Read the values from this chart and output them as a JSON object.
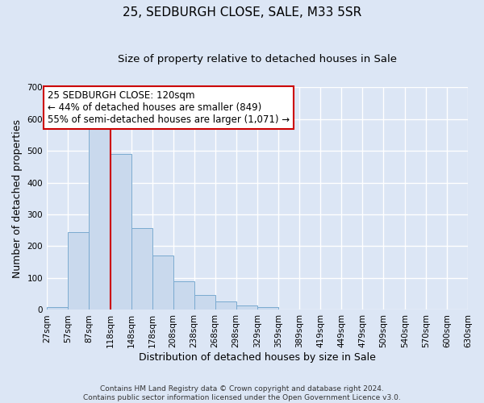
{
  "title": "25, SEDBURGH CLOSE, SALE, M33 5SR",
  "subtitle": "Size of property relative to detached houses in Sale",
  "xlabel": "Distribution of detached houses by size in Sale",
  "ylabel": "Number of detached properties",
  "footer_line1": "Contains HM Land Registry data © Crown copyright and database right 2024.",
  "footer_line2": "Contains public sector information licensed under the Open Government Licence v3.0.",
  "bin_edges": [
    27,
    57,
    87,
    118,
    148,
    178,
    208,
    238,
    268,
    298,
    329,
    359,
    389,
    419,
    449,
    479,
    509,
    540,
    570,
    600,
    630
  ],
  "bin_labels": [
    "27sqm",
    "57sqm",
    "87sqm",
    "118sqm",
    "148sqm",
    "178sqm",
    "208sqm",
    "238sqm",
    "268sqm",
    "298sqm",
    "329sqm",
    "359sqm",
    "389sqm",
    "419sqm",
    "449sqm",
    "479sqm",
    "509sqm",
    "540sqm",
    "570sqm",
    "600sqm",
    "630sqm"
  ],
  "bar_heights": [
    10,
    245,
    575,
    490,
    258,
    170,
    90,
    47,
    27,
    15,
    8,
    1,
    0,
    1,
    0,
    0,
    0,
    0,
    0,
    0
  ],
  "bar_facecolor": "#c9d9ed",
  "bar_edgecolor": "#7aaad0",
  "background_color": "#dce6f5",
  "plot_bg_color": "#dce6f5",
  "grid_color": "#ffffff",
  "vline_x": 118,
  "vline_color": "#cc0000",
  "ylim": [
    0,
    700
  ],
  "yticks": [
    0,
    100,
    200,
    300,
    400,
    500,
    600,
    700
  ],
  "annotation_text": "25 SEDBURGH CLOSE: 120sqm\n← 44% of detached houses are smaller (849)\n55% of semi-detached houses are larger (1,071) →",
  "annotation_box_edgecolor": "#cc0000",
  "annotation_box_facecolor": "#ffffff",
  "title_fontsize": 11,
  "subtitle_fontsize": 9.5,
  "axis_label_fontsize": 9,
  "tick_fontsize": 7.5,
  "annotation_fontsize": 8.5,
  "footer_fontsize": 6.5
}
